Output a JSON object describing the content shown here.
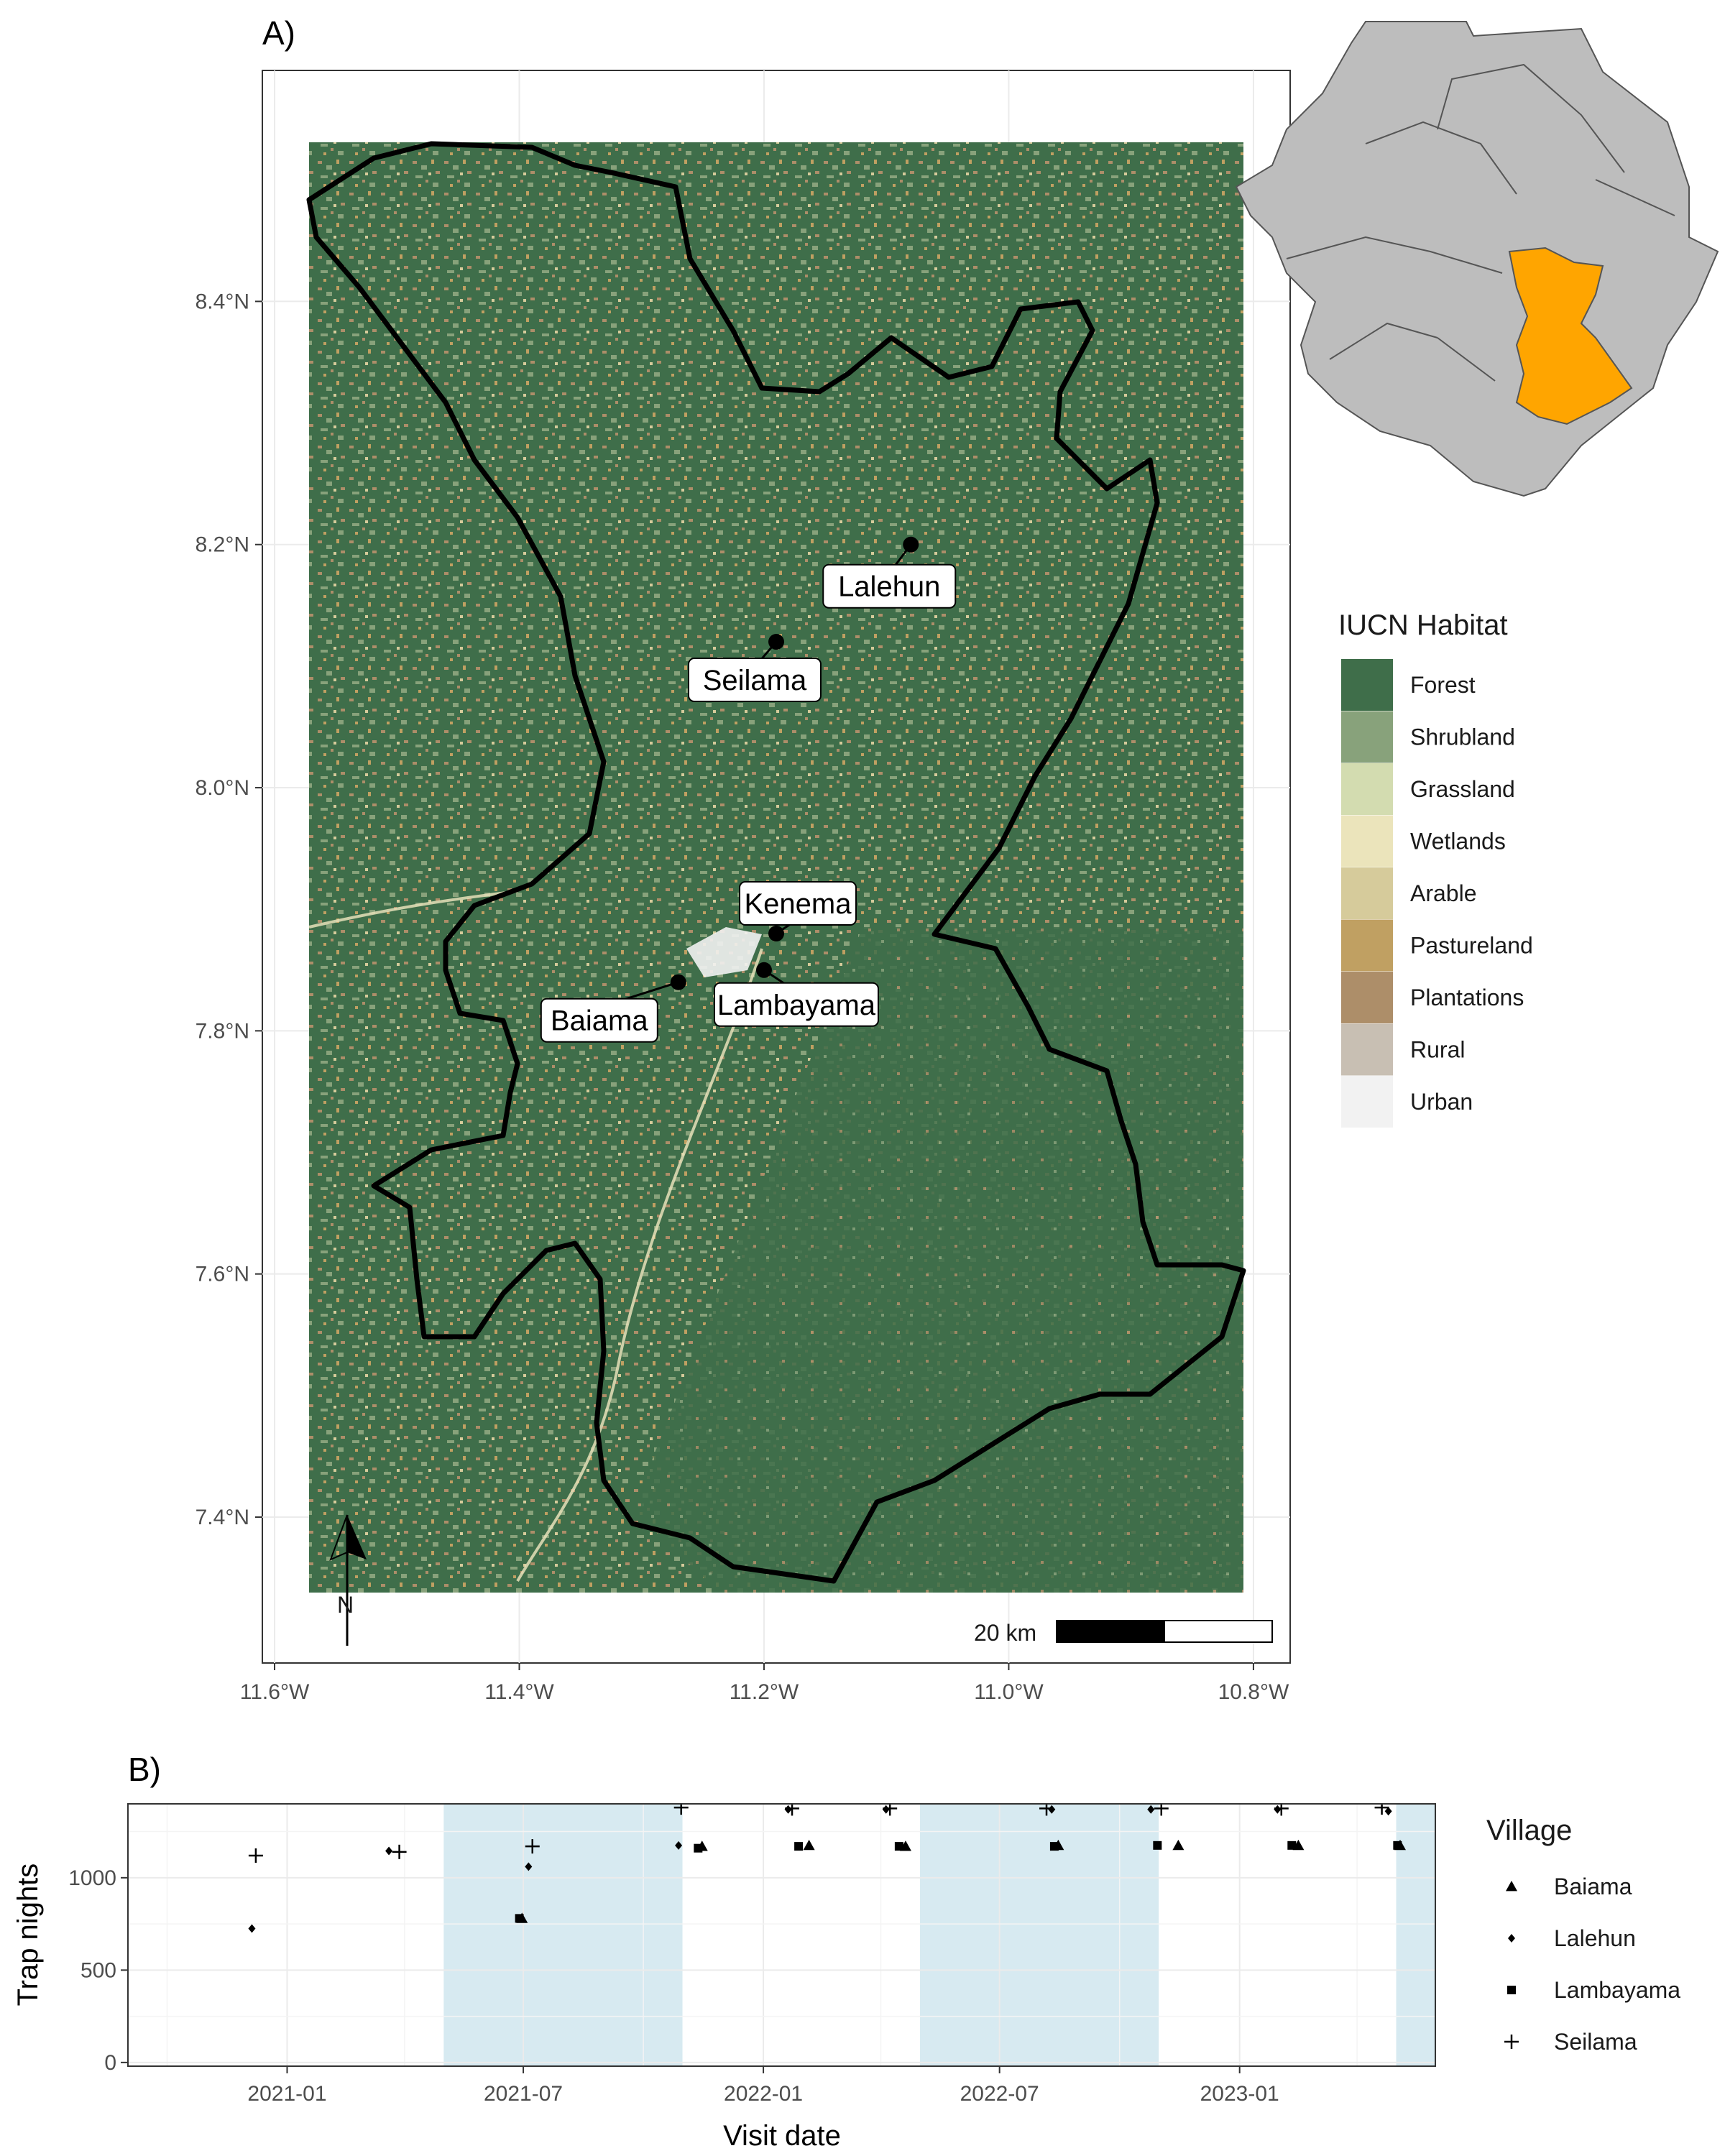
{
  "panel_a": {
    "tag": "A)",
    "legend": {
      "title": "IUCN Habitat",
      "items": [
        {
          "label": "Forest",
          "color": "#3f6e4a"
        },
        {
          "label": "Shrubland",
          "color": "#88a27b"
        },
        {
          "label": "Grassland",
          "color": "#d3dcb0"
        },
        {
          "label": "Wetlands",
          "color": "#ebe4bb"
        },
        {
          "label": "Arable",
          "color": "#d6cb9b"
        },
        {
          "label": "Pastureland",
          "color": "#c0a062"
        },
        {
          "label": "Plantations",
          "color": "#ad8e69"
        },
        {
          "label": "Rural",
          "color": "#c8bfb3"
        },
        {
          "label": "Urban",
          "color": "#f2f2f2"
        }
      ]
    },
    "scale_bar": "20 km",
    "north_label": "N",
    "inset_highlight_color": "#ffa500"
  },
  "panel_b": {
    "tag": "B)",
    "ylabel": "Trap nights",
    "xlabel": "Visit date",
    "legend_title": "Village",
    "season_color": "#d7eaf1"
  },
  "chart_data": [
    {
      "type": "map",
      "x": [
        "11.6°W",
        "11.4°W",
        "11.2°W",
        "11.0°W",
        "10.8°W"
      ],
      "y": [
        "7.4°N",
        "7.6°N",
        "7.8°N",
        "8.0°N",
        "8.2°N",
        "8.4°N"
      ],
      "xlim": [
        -11.61,
        -10.77
      ],
      "ylim": [
        7.28,
        8.59
      ],
      "villages": [
        {
          "name": "Lalehun",
          "lon": -11.08,
          "lat": 8.2
        },
        {
          "name": "Seilama",
          "lon": -11.19,
          "lat": 8.12
        },
        {
          "name": "Kenema",
          "lon": -11.19,
          "lat": 7.88
        },
        {
          "name": "Lambayama",
          "lon": -11.2,
          "lat": 7.85
        },
        {
          "name": "Baiama",
          "lon": -11.27,
          "lat": 7.84
        }
      ]
    },
    {
      "type": "scatter",
      "x_ticks": [
        "2021-01",
        "2021-07",
        "2022-01",
        "2022-07",
        "2023-01"
      ],
      "y_ticks": [
        0,
        500,
        1000
      ],
      "ylim": [
        -20,
        1400
      ],
      "xlim": [
        "2020-09-01",
        "2023-05-31"
      ],
      "shaded_periods": [
        [
          "2021-05-01",
          "2021-10-31"
        ],
        [
          "2022-05-01",
          "2022-10-31"
        ],
        [
          "2023-05-01",
          "2023-05-31"
        ]
      ],
      "series": [
        {
          "name": "Baiama",
          "marker": "triangle",
          "points": [
            {
              "x": "2021-06-30",
              "y": 780
            },
            {
              "x": "2021-11-15",
              "y": 1170
            },
            {
              "x": "2022-02-05",
              "y": 1175
            },
            {
              "x": "2022-04-20",
              "y": 1170
            },
            {
              "x": "2022-08-15",
              "y": 1175
            },
            {
              "x": "2022-11-15",
              "y": 1175
            },
            {
              "x": "2023-02-15",
              "y": 1175
            },
            {
              "x": "2023-05-04",
              "y": 1175
            }
          ]
        },
        {
          "name": "Lalehun",
          "marker": "diamond",
          "points": [
            {
              "x": "2020-12-05",
              "y": 725
            },
            {
              "x": "2021-03-20",
              "y": 1145
            },
            {
              "x": "2021-07-05",
              "y": 1060
            },
            {
              "x": "2021-10-28",
              "y": 1175
            },
            {
              "x": "2022-01-20",
              "y": 1370
            },
            {
              "x": "2022-04-05",
              "y": 1370
            },
            {
              "x": "2022-08-10",
              "y": 1370
            },
            {
              "x": "2022-10-25",
              "y": 1370
            },
            {
              "x": "2023-01-30",
              "y": 1370
            },
            {
              "x": "2023-04-25",
              "y": 1360
            }
          ]
        },
        {
          "name": "Lambayama",
          "marker": "square",
          "points": [
            {
              "x": "2021-06-28",
              "y": 780
            },
            {
              "x": "2021-11-12",
              "y": 1160
            },
            {
              "x": "2022-01-28",
              "y": 1170
            },
            {
              "x": "2022-04-15",
              "y": 1170
            },
            {
              "x": "2022-08-12",
              "y": 1170
            },
            {
              "x": "2022-10-30",
              "y": 1175
            },
            {
              "x": "2023-02-10",
              "y": 1175
            },
            {
              "x": "2023-05-02",
              "y": 1175
            }
          ]
        },
        {
          "name": "Seilama",
          "marker": "plus",
          "points": [
            {
              "x": "2020-12-08",
              "y": 1120
            },
            {
              "x": "2021-03-28",
              "y": 1140
            },
            {
              "x": "2021-07-08",
              "y": 1170
            },
            {
              "x": "2021-10-30",
              "y": 1380
            },
            {
              "x": "2022-01-23",
              "y": 1375
            },
            {
              "x": "2022-04-08",
              "y": 1375
            },
            {
              "x": "2022-08-06",
              "y": 1375
            },
            {
              "x": "2022-11-02",
              "y": 1375
            },
            {
              "x": "2023-02-02",
              "y": 1375
            },
            {
              "x": "2023-04-20",
              "y": 1380
            }
          ]
        }
      ]
    }
  ]
}
